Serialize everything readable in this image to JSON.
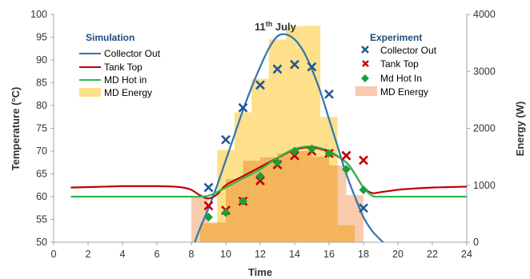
{
  "chart_data": {
    "type": "line",
    "title": "11",
    "title_sup": "th",
    "title_suffix": " July",
    "xlabel": "Time",
    "ylabel_left": "Temperature (°C)",
    "ylabel_right": "Energy (W)",
    "xlim": [
      0,
      24
    ],
    "ylim_left": [
      50,
      100
    ],
    "ylim_right": [
      0,
      4000
    ],
    "x_ticks": [
      "0",
      "2",
      "4",
      "6",
      "8",
      "10",
      "12",
      "14",
      "16",
      "18",
      "20",
      "22",
      "24"
    ],
    "y_left_ticks": [
      "50",
      "55",
      "60",
      "65",
      "70",
      "75",
      "80",
      "85",
      "90",
      "95",
      "100"
    ],
    "y_right_ticks": [
      "0",
      "1000",
      "2000",
      "3000",
      "4000"
    ],
    "legend_simulation": {
      "title": "Simulation",
      "entries": [
        {
          "name": "Collector Out",
          "color": "#2e75b6"
        },
        {
          "name": "Tank Top",
          "color": "#c00000"
        },
        {
          "name": "MD Hot in",
          "color": "#2db84a"
        },
        {
          "name": "MD Energy",
          "color": "#ffe08a"
        }
      ]
    },
    "legend_experiment": {
      "title": "Experiment",
      "entries": [
        {
          "name": "Collector Out",
          "color": "#1f5a96"
        },
        {
          "name": "Tank Top",
          "color": "#c00000"
        },
        {
          "name": "Md Hot In",
          "color": "#1a9e3a"
        },
        {
          "name": "MD Energy",
          "color": "#f8cbad"
        }
      ]
    },
    "series": [
      {
        "key": "sim_collector_out",
        "axis": "left",
        "color": "#2e75b6",
        "x": [
          8.2,
          8.5,
          9,
          9.5,
          10,
          10.5,
          11,
          11.5,
          12,
          12.5,
          13,
          13.5,
          14,
          14.5,
          15,
          15.5,
          16,
          16.5,
          17,
          17.5,
          18,
          18.5,
          19,
          19.2
        ],
        "y": [
          50,
          53,
          57.5,
          62.5,
          68,
          73.5,
          79,
          84,
          88.5,
          92.5,
          95.2,
          95.6,
          94.5,
          92,
          88,
          83,
          77,
          71,
          65,
          60,
          55.5,
          52.5,
          50.5,
          49.8
        ]
      },
      {
        "key": "sim_tank_top",
        "axis": "left",
        "color": "#c00000",
        "x": [
          1,
          2,
          3,
          4,
          5,
          6,
          7,
          7.5,
          8,
          8.5,
          9,
          9.5,
          10,
          11,
          12,
          13,
          14,
          15,
          16,
          17,
          17.5,
          18,
          18.5,
          19,
          20,
          21,
          22,
          23,
          24
        ],
        "y": [
          62,
          62.1,
          62.2,
          62.3,
          62.3,
          62.3,
          62.2,
          62,
          61.5,
          60.3,
          59.6,
          60.5,
          62.5,
          64.5,
          66.5,
          68.5,
          70.3,
          70.8,
          69.8,
          67.5,
          65,
          62,
          60.8,
          61,
          61.5,
          61.8,
          62,
          62.1,
          62.2
        ]
      },
      {
        "key": "sim_md_hot_in",
        "axis": "left",
        "color": "#2db84a",
        "x": [
          1,
          2,
          3,
          4,
          5,
          6,
          7,
          8,
          8.5,
          9,
          9.5,
          10,
          11,
          12,
          13,
          14,
          15,
          16,
          17,
          17.5,
          18,
          18.5,
          19,
          20,
          21,
          22,
          23,
          24
        ],
        "y": [
          60,
          60,
          60,
          60,
          60,
          60,
          60,
          60,
          60,
          60.2,
          61,
          62,
          64,
          66,
          68.5,
          70.5,
          71,
          70,
          67.5,
          65,
          62,
          60.2,
          60,
          60,
          60,
          60,
          60,
          60
        ]
      },
      {
        "key": "exp_collector_out",
        "axis": "left",
        "marker": "x",
        "color": "#1f5a96",
        "x": [
          9,
          10,
          11,
          12,
          13,
          14,
          15,
          16,
          17,
          18
        ],
        "y": [
          62,
          72.5,
          79.5,
          84.5,
          88,
          89,
          88.5,
          82.5,
          69,
          57.5
        ]
      },
      {
        "key": "exp_tank_top",
        "axis": "left",
        "marker": "x",
        "color": "#c00000",
        "x": [
          9,
          10,
          11,
          12,
          13,
          14,
          15,
          16,
          17,
          18
        ],
        "y": [
          58,
          57,
          59,
          63.5,
          67,
          69,
          70,
          69.5,
          69,
          68
        ]
      },
      {
        "key": "exp_md_hot_in",
        "axis": "left",
        "marker": "diamond",
        "color": "#1a9e3a",
        "x": [
          9,
          10,
          11,
          12,
          13,
          14,
          15,
          16,
          17,
          18
        ],
        "y": [
          55.5,
          56.5,
          59,
          64.5,
          67.5,
          70,
          70.5,
          69.5,
          66,
          61.5
        ]
      }
    ],
    "bars": [
      {
        "key": "sim_md_energy",
        "axis": "right",
        "color": "#ffe08a",
        "segments": [
          {
            "x0": 8.5,
            "x1": 9.5,
            "value": 330
          },
          {
            "x0": 9.5,
            "x1": 10.5,
            "value": 1620
          },
          {
            "x0": 10.5,
            "x1": 11.5,
            "value": 2280
          },
          {
            "x0": 11.5,
            "x1": 12.5,
            "value": 2870
          },
          {
            "x0": 12.5,
            "x1": 13.5,
            "value": 3560
          },
          {
            "x0": 13.5,
            "x1": 14.5,
            "value": 3790
          },
          {
            "x0": 14.5,
            "x1": 15.5,
            "value": 3800
          },
          {
            "x0": 15.5,
            "x1": 16.5,
            "value": 2200
          },
          {
            "x0": 16.5,
            "x1": 17.5,
            "value": 300
          }
        ]
      },
      {
        "key": "exp_md_energy",
        "axis": "right",
        "color": "#f8cbad",
        "segments": [
          {
            "x0": 8,
            "x1": 9,
            "value": 790
          },
          {
            "x0": 9,
            "x1": 10,
            "value": 350
          },
          {
            "x0": 10,
            "x1": 11,
            "value": 1110
          },
          {
            "x0": 11,
            "x1": 12,
            "value": 1430
          },
          {
            "x0": 12,
            "x1": 13,
            "value": 1490
          },
          {
            "x0": 13,
            "x1": 14,
            "value": 1560
          },
          {
            "x0": 14,
            "x1": 15,
            "value": 1600
          },
          {
            "x0": 15,
            "x1": 16,
            "value": 1500
          },
          {
            "x0": 16,
            "x1": 17,
            "value": 1350
          },
          {
            "x0": 17,
            "x1": 18,
            "value": 830
          }
        ]
      }
    ]
  }
}
